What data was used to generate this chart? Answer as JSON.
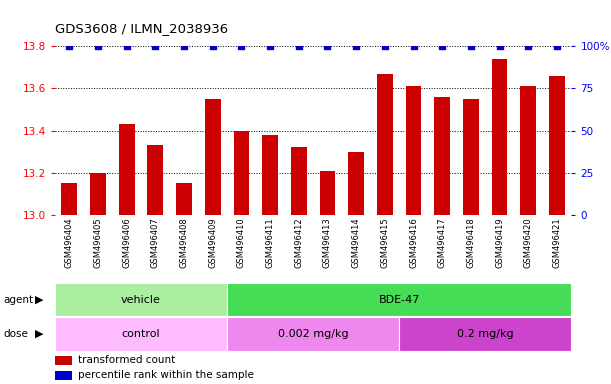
{
  "title": "GDS3608 / ILMN_2038936",
  "samples": [
    "GSM496404",
    "GSM496405",
    "GSM496406",
    "GSM496407",
    "GSM496408",
    "GSM496409",
    "GSM496410",
    "GSM496411",
    "GSM496412",
    "GSM496413",
    "GSM496414",
    "GSM496415",
    "GSM496416",
    "GSM496417",
    "GSM496418",
    "GSM496419",
    "GSM496420",
    "GSM496421"
  ],
  "bar_values": [
    13.15,
    13.2,
    13.43,
    13.33,
    13.15,
    13.55,
    13.4,
    13.38,
    13.32,
    13.21,
    13.3,
    13.67,
    13.61,
    13.56,
    13.55,
    13.74,
    13.61,
    13.66
  ],
  "percentile_values": [
    100,
    100,
    100,
    100,
    100,
    100,
    100,
    100,
    100,
    100,
    100,
    100,
    100,
    100,
    100,
    100,
    100,
    100
  ],
  "bar_color": "#cc0000",
  "percentile_color": "#0000cc",
  "ylim_left": [
    13.0,
    13.8
  ],
  "ylim_right": [
    0,
    100
  ],
  "yticks_left": [
    13.0,
    13.2,
    13.4,
    13.6,
    13.8
  ],
  "yticks_right": [
    0,
    25,
    50,
    75,
    100
  ],
  "ytick_labels_right": [
    "0",
    "25",
    "50",
    "75",
    "100%"
  ],
  "agent_labels": [
    {
      "text": "vehicle",
      "start": 0,
      "end": 6,
      "color": "#aaeea0"
    },
    {
      "text": "BDE-47",
      "start": 6,
      "end": 18,
      "color": "#44dd55"
    }
  ],
  "dose_labels": [
    {
      "text": "control",
      "start": 0,
      "end": 6,
      "color": "#ffbbff"
    },
    {
      "text": "0.002 mg/kg",
      "start": 6,
      "end": 12,
      "color": "#ee88ee"
    },
    {
      "text": "0.2 mg/kg",
      "start": 12,
      "end": 18,
      "color": "#cc44cc"
    }
  ],
  "legend_items": [
    {
      "color": "#cc0000",
      "label": "transformed count"
    },
    {
      "color": "#0000cc",
      "label": "percentile rank within the sample"
    }
  ],
  "tick_area_bg": "#d3d3d3",
  "bar_baseline": 13.0
}
